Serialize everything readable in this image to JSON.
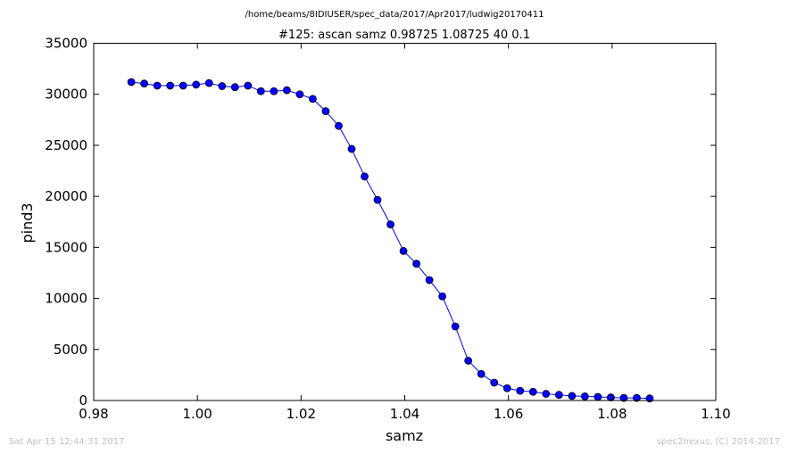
{
  "header": {
    "path": "/home/beams/8IDIUSER/spec_data/2017/Apr2017/ludwig20170411"
  },
  "footer": {
    "timestamp": "Sat Apr 15 12:44:31 2017",
    "credit": "spec2nexus, (C) 2014-2017"
  },
  "chart_data": {
    "type": "line",
    "title": "#125: ascan  samz 0.98725 1.08725  40 0.1",
    "xlabel": "samz",
    "ylabel": "pind3",
    "xlim": [
      0.98,
      1.1
    ],
    "ylim": [
      0,
      35000
    ],
    "xticks": [
      "0.98",
      "1.00",
      "1.02",
      "1.04",
      "1.06",
      "1.08",
      "1.10"
    ],
    "yticks": [
      "0",
      "5000",
      "10000",
      "15000",
      "20000",
      "25000",
      "30000",
      "35000"
    ],
    "grid": false,
    "marker": "circle",
    "color": "#0000ff",
    "series": [
      {
        "x": [
          0.98725,
          0.98975,
          0.99225,
          0.99475,
          0.99725,
          0.99975,
          1.00225,
          1.00475,
          1.00725,
          1.00975,
          1.01225,
          1.01475,
          1.01725,
          1.01975,
          1.02225,
          1.02475,
          1.02725,
          1.02975,
          1.03225,
          1.03475,
          1.03725,
          1.03975,
          1.04225,
          1.04475,
          1.04725,
          1.04975,
          1.05225,
          1.05475,
          1.05725,
          1.05975,
          1.06225,
          1.06475,
          1.06725,
          1.06975,
          1.07225,
          1.07475,
          1.07725,
          1.07975,
          1.08225,
          1.08475,
          1.08725
        ],
        "y": [
          31200,
          31050,
          30850,
          30850,
          30850,
          30950,
          31100,
          30800,
          30700,
          30850,
          30300,
          30300,
          30400,
          30000,
          29550,
          28350,
          26900,
          24650,
          21950,
          19650,
          17250,
          14650,
          13400,
          11800,
          10200,
          7250,
          3900,
          2600,
          1750,
          1200,
          950,
          850,
          650,
          550,
          450,
          400,
          350,
          300,
          250,
          250,
          200
        ]
      }
    ]
  }
}
